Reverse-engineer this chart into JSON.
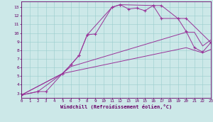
{
  "bg_color": "#cce8e8",
  "grid_color": "#99cccc",
  "line_color": "#993399",
  "xlabel": "Windchill (Refroidissement éolien,°C)",
  "xlim": [
    0,
    23
  ],
  "ylim": [
    2.5,
    13.7
  ],
  "xticks": [
    0,
    1,
    2,
    3,
    4,
    5,
    6,
    7,
    8,
    9,
    10,
    11,
    12,
    13,
    14,
    15,
    16,
    17,
    18,
    19,
    20,
    21,
    22,
    23
  ],
  "yticks": [
    3,
    4,
    5,
    6,
    7,
    8,
    9,
    10,
    11,
    12,
    13
  ],
  "curve1_x": [
    0,
    2,
    3,
    5,
    6,
    7,
    8,
    9,
    11,
    12,
    13,
    14,
    15,
    16,
    17,
    19,
    20,
    23
  ],
  "curve1_y": [
    2.8,
    3.2,
    3.2,
    5.3,
    6.3,
    7.4,
    9.8,
    9.9,
    13.0,
    13.3,
    12.8,
    12.9,
    12.6,
    13.2,
    13.2,
    11.7,
    11.7,
    8.9
  ],
  "curve2_x": [
    0,
    2,
    5,
    6,
    7,
    8,
    11,
    12,
    16,
    17,
    19,
    20,
    21,
    22,
    23
  ],
  "curve2_y": [
    2.8,
    3.2,
    5.3,
    6.3,
    7.4,
    9.8,
    13.0,
    13.3,
    13.2,
    11.7,
    11.7,
    10.2,
    8.3,
    7.8,
    8.9
  ],
  "line3_x": [
    0,
    5,
    6,
    20,
    21,
    22,
    23
  ],
  "line3_y": [
    2.8,
    5.3,
    6.1,
    10.1,
    10.1,
    8.5,
    9.2
  ],
  "line4_x": [
    0,
    5,
    6,
    20,
    22,
    23
  ],
  "line4_y": [
    2.8,
    5.3,
    5.5,
    8.3,
    7.7,
    8.1
  ]
}
